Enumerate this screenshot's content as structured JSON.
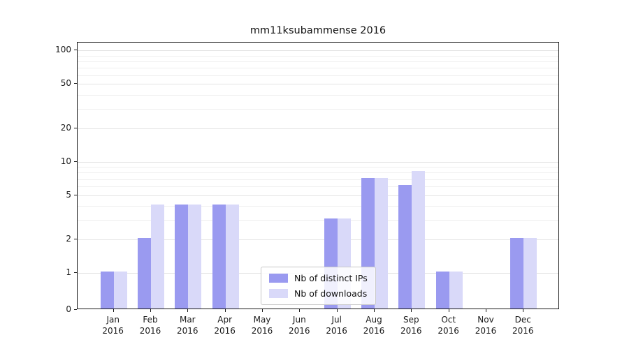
{
  "title": "mm11ksubammense 2016",
  "colors": {
    "distinct_ips": "#9a9af0",
    "downloads": "#d9d9f9",
    "grid_major": "#e3e3e3",
    "grid_minor": "#efefef",
    "spine": "#1a1a1a",
    "background": "#ffffff"
  },
  "legend": {
    "items": [
      {
        "label": "Nb of distinct IPs",
        "color_key": "distinct_ips"
      },
      {
        "label": "Nb of downloads",
        "color_key": "downloads"
      }
    ]
  },
  "chart_data": {
    "type": "bar",
    "title": "mm11ksubammense 2016",
    "categories": [
      "Jan 2016",
      "Feb 2016",
      "Mar 2016",
      "Apr 2016",
      "May 2016",
      "Jun 2016",
      "Jul 2016",
      "Aug 2016",
      "Sep 2016",
      "Oct 2016",
      "Nov 2016",
      "Dec 2016"
    ],
    "series": [
      {
        "name": "Nb of distinct IPs",
        "values": [
          1,
          2,
          4,
          4,
          0,
          0,
          3,
          7,
          6,
          1,
          0,
          2
        ]
      },
      {
        "name": "Nb of downloads",
        "values": [
          1,
          4,
          4,
          4,
          0,
          0,
          3,
          7,
          8,
          1,
          0,
          2
        ]
      }
    ],
    "yscale": "symlog",
    "y_ticks": [
      0,
      1,
      2,
      5,
      10,
      20,
      50,
      100
    ],
    "y_minor_ticks": [
      3,
      4,
      6,
      7,
      8,
      9,
      30,
      40,
      60,
      70,
      80,
      90
    ],
    "ylim": [
      0,
      120
    ],
    "grid": true,
    "legend_position": "lower center"
  }
}
